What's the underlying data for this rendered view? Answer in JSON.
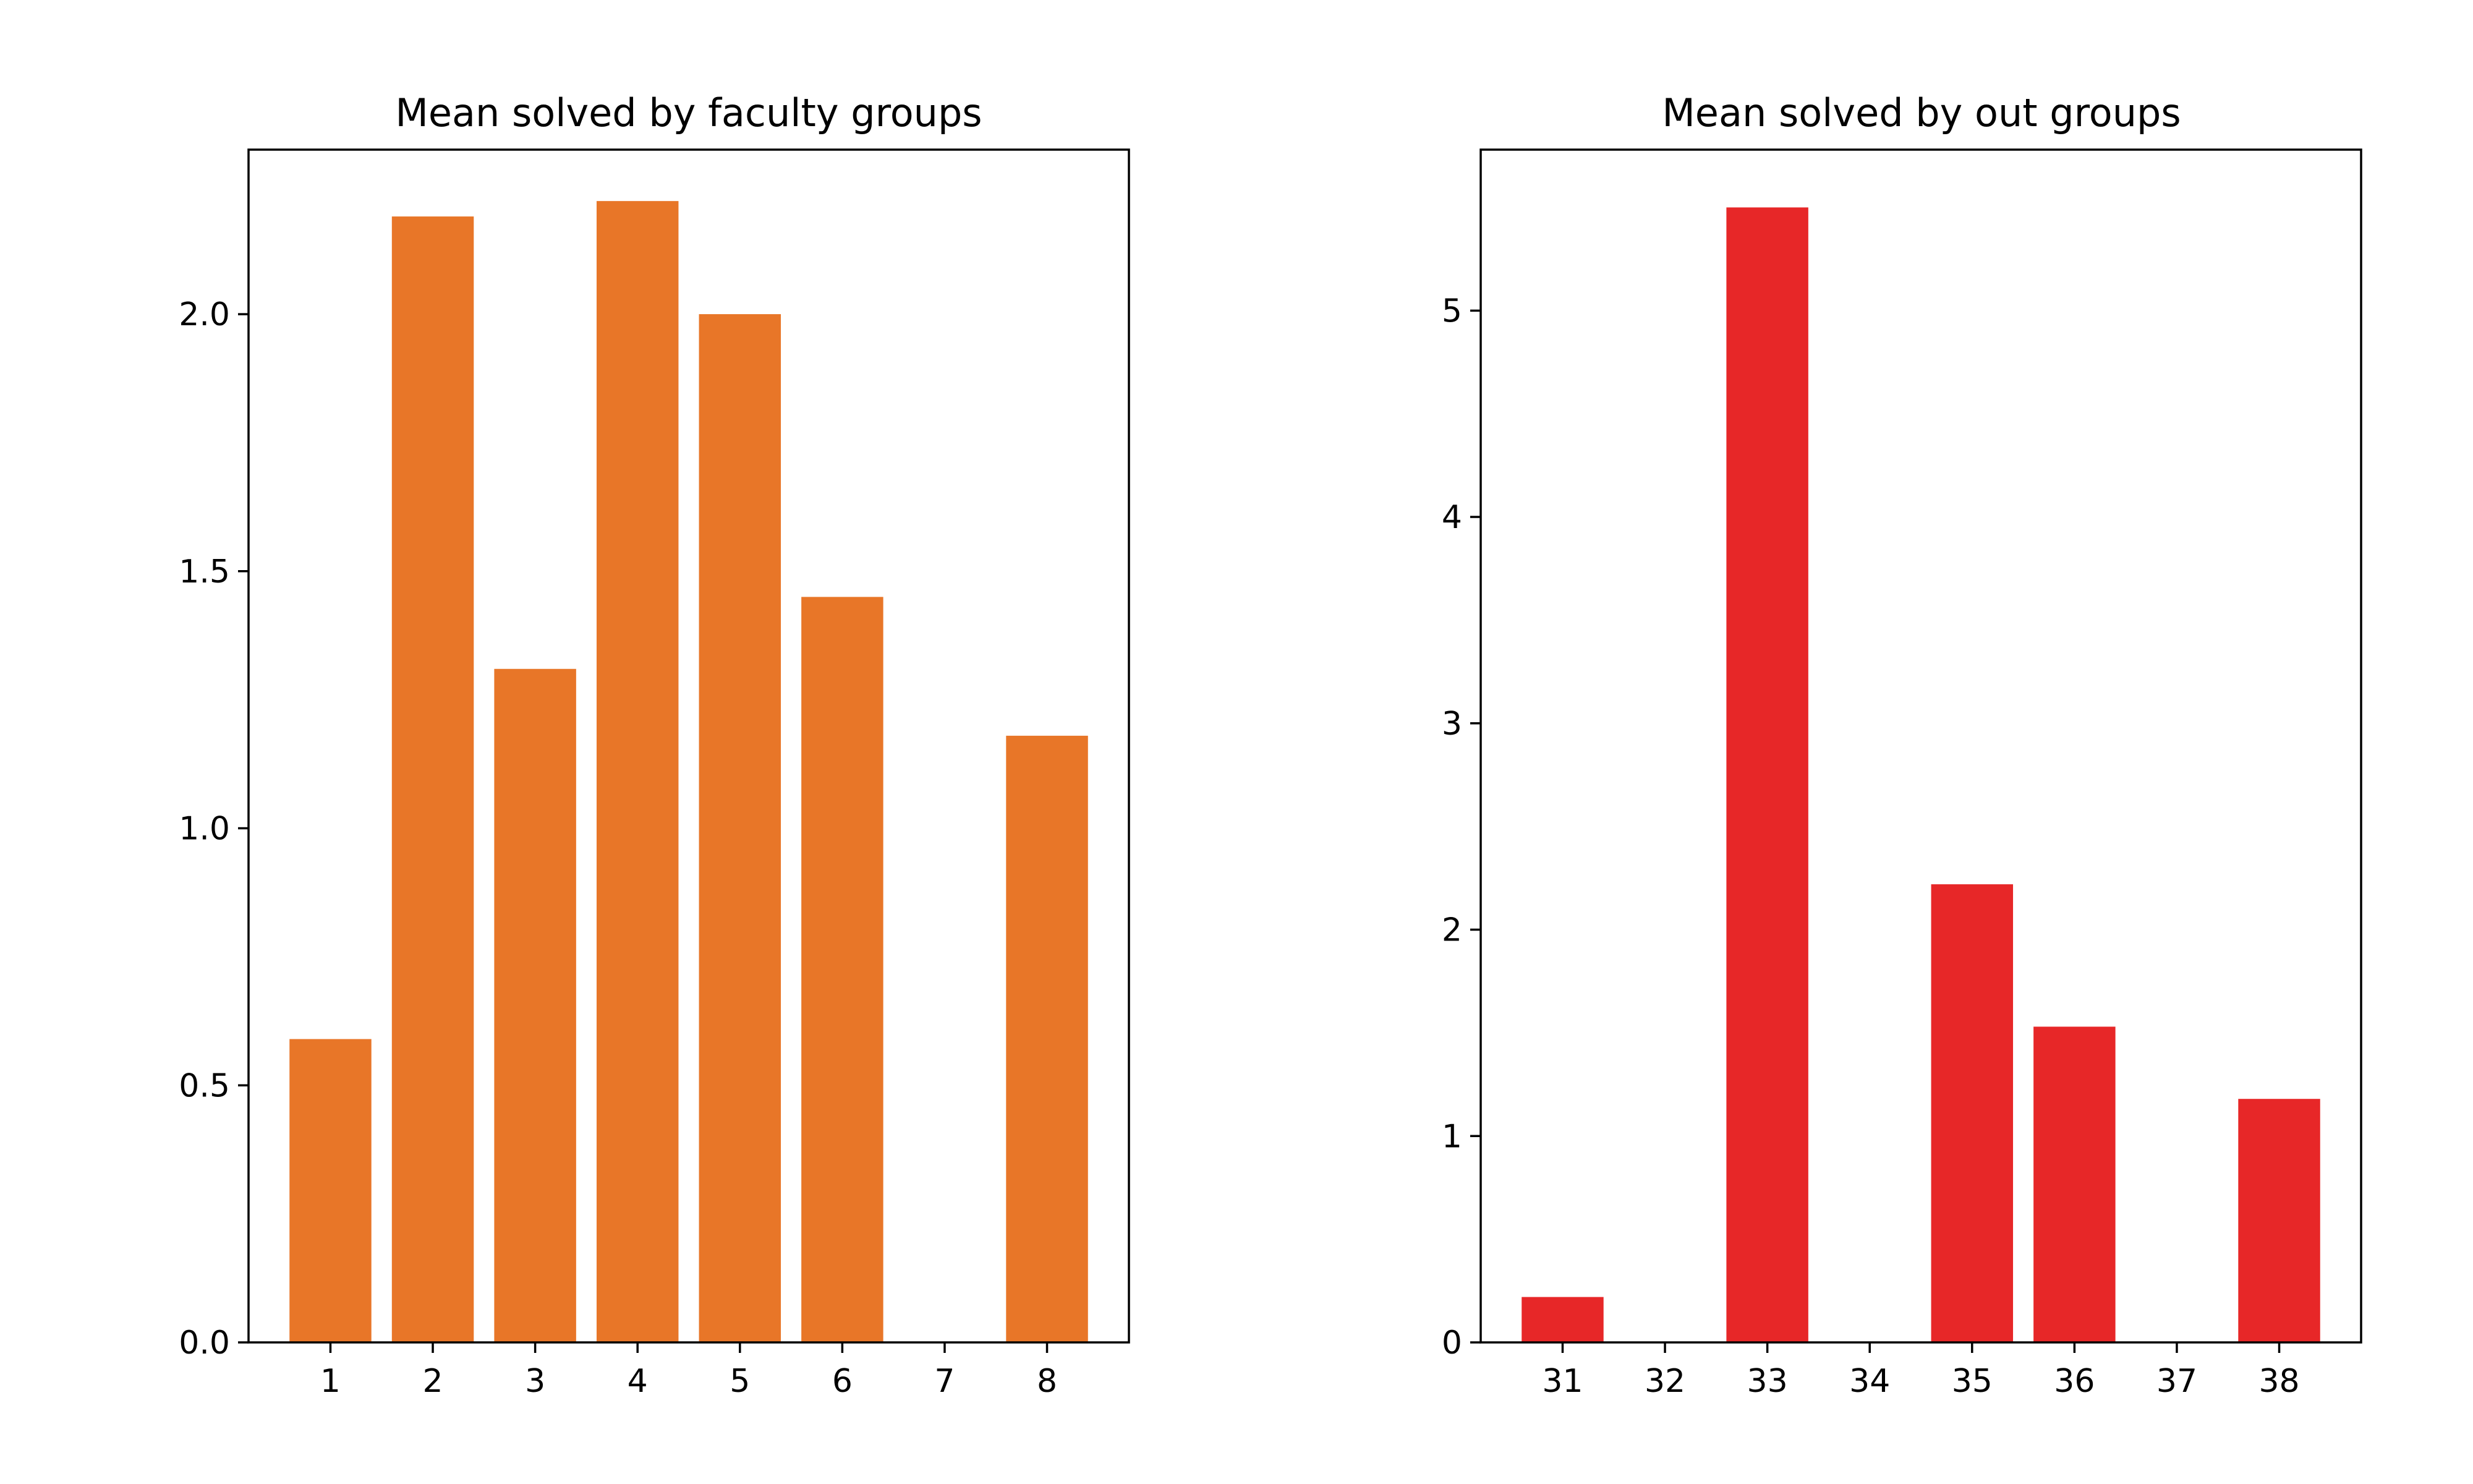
{
  "chart_data": [
    {
      "type": "bar",
      "title": "Mean solved by faculty groups",
      "xlabel": "",
      "ylabel": "",
      "categories": [
        "1",
        "2",
        "3",
        "4",
        "5",
        "6",
        "7",
        "8"
      ],
      "values": [
        0.59,
        2.19,
        1.31,
        2.22,
        2.0,
        1.45,
        0,
        1.18
      ],
      "ylim": [
        0,
        2.32
      ],
      "yticks": [
        0.0,
        0.5,
        1.0,
        1.5,
        2.0
      ],
      "ytick_labels": [
        "0.0",
        "0.5",
        "1.0",
        "1.5",
        "2.0"
      ],
      "color": "#e87628",
      "grid": false,
      "legend": "none"
    },
    {
      "type": "bar",
      "title": "Mean solved by out groups",
      "xlabel": "",
      "ylabel": "",
      "categories": [
        "31",
        "32",
        "33",
        "34",
        "35",
        "36",
        "37",
        "38"
      ],
      "values": [
        0.22,
        0,
        5.5,
        0,
        2.22,
        1.53,
        0,
        1.18
      ],
      "ylim": [
        0,
        5.78
      ],
      "yticks": [
        0,
        1,
        2,
        3,
        4,
        5
      ],
      "ytick_labels": [
        "0",
        "1",
        "2",
        "3",
        "4",
        "5"
      ],
      "color": "#e72728",
      "grid": false,
      "legend": "none"
    }
  ]
}
